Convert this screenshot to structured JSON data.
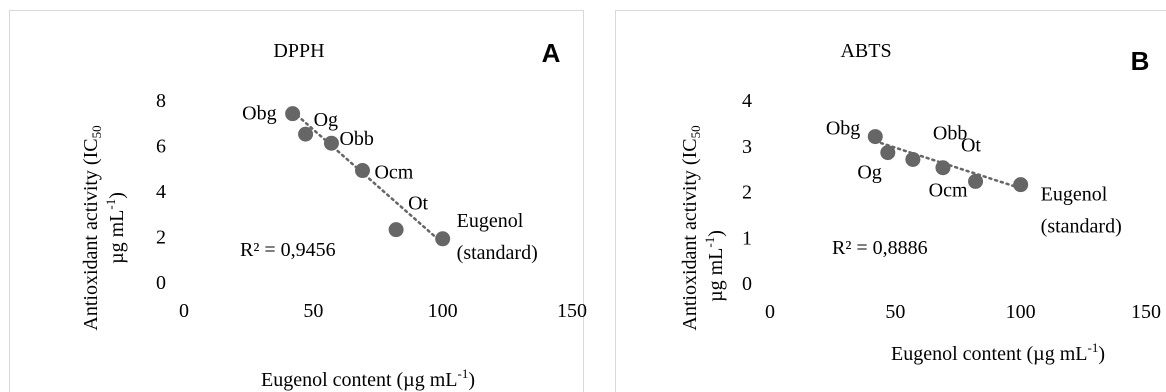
{
  "chart_data": [
    {
      "type": "scatter",
      "title": "DPPH",
      "panel_letter": "A",
      "xlabel": "Eugenol content  (µg mL",
      "xlabel_sup": "-1",
      "xlabel_tail": ")",
      "ylabel_line1_pre": "Antioxidant activity (IC",
      "ylabel_line1_sub": "50",
      "ylabel_line2_pre": "µg mL",
      "ylabel_line2_sup": "-1",
      "ylabel_line2_tail": ")",
      "xlim": [
        0,
        150
      ],
      "ylim": [
        0,
        8
      ],
      "xticks": [
        "0",
        "50",
        "100",
        "150"
      ],
      "yticks": [
        "0",
        "2",
        "4",
        "6",
        "8"
      ],
      "points": [
        {
          "x": 42,
          "y": 7.4,
          "label": "Obg"
        },
        {
          "x": 47,
          "y": 6.5,
          "label": "Og"
        },
        {
          "x": 57,
          "y": 6.1,
          "label": "Obb"
        },
        {
          "x": 69,
          "y": 4.9,
          "label": "Ocm"
        },
        {
          "x": 82,
          "y": 2.3,
          "label": "Ot"
        },
        {
          "x": 100,
          "y": 1.9,
          "label_lines": [
            "Eugenol",
            "(standard)"
          ]
        }
      ],
      "trendline": {
        "x1": 42,
        "y1": 7.5,
        "x2": 100,
        "y2": 1.7
      },
      "r2_label": "R² = 0,9456",
      "grid": false,
      "colors": {
        "marker": "#666666",
        "trend": "#666666",
        "border": "#d9d9d9"
      }
    },
    {
      "type": "scatter",
      "title": "ABTS",
      "panel_letter": "B",
      "xlabel": "Eugenol content  (µg mL",
      "xlabel_sup": "-1",
      "xlabel_tail": ")",
      "ylabel_line1_pre": "Antioxidant activity (IC",
      "ylabel_line1_sub": "50",
      "ylabel_line2_pre": "µg mL",
      "ylabel_line2_sup": "-1",
      "ylabel_line2_tail": ")",
      "xlim": [
        0,
        150
      ],
      "ylim": [
        0,
        4
      ],
      "xticks": [
        "0",
        "50",
        "100",
        "150"
      ],
      "yticks": [
        "0",
        "1",
        "2",
        "3",
        "4"
      ],
      "points": [
        {
          "x": 42,
          "y": 3.2,
          "label": "Obg"
        },
        {
          "x": 47,
          "y": 2.85,
          "label": "Og"
        },
        {
          "x": 57,
          "y": 2.7,
          "label": "Obb"
        },
        {
          "x": 69,
          "y": 2.52,
          "label": "Ot"
        },
        {
          "x": 82,
          "y": 2.22,
          "label": "Ocm"
        },
        {
          "x": 100,
          "y": 2.15,
          "label_lines": [
            "Eugenol",
            "(standard)"
          ]
        }
      ],
      "trendline": {
        "x1": 42,
        "y1": 3.1,
        "x2": 100,
        "y2": 2.07
      },
      "r2_label": "R² = 0,8886",
      "grid": false,
      "colors": {
        "marker": "#666666",
        "trend": "#666666",
        "border": "#d9d9d9"
      }
    }
  ]
}
